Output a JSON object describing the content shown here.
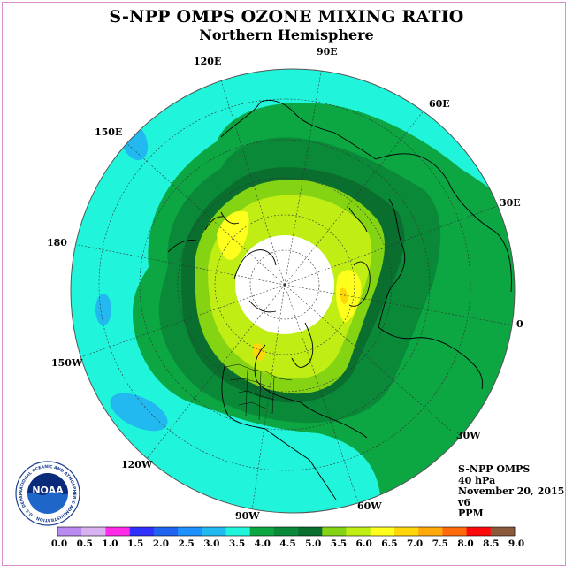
{
  "title": "S-NPP OMPS OZONE MIXING RATIO",
  "subtitle": "Northern Hemisphere",
  "longitude_labels": [
    "90E",
    "60E",
    "120E",
    "150E",
    "30E",
    "180",
    "0",
    "150W",
    "30W",
    "120W",
    "60W",
    "90W"
  ],
  "info": {
    "instrument": "S-NPP OMPS",
    "level": "40 hPa",
    "date": "November 20, 2015",
    "version": "v6",
    "units": "PPM"
  },
  "colorbar": {
    "labels": [
      "0.0",
      "0.5",
      "1.0",
      "1.5",
      "2.0",
      "2.5",
      "3.0",
      "3.5",
      "4.0",
      "4.5",
      "5.0",
      "5.5",
      "6.0",
      "6.5",
      "7.0",
      "7.5",
      "8.0",
      "8.5",
      "9.0"
    ],
    "colors": [
      "#b98af0",
      "#d9b2f2",
      "#ff2be6",
      "#3030ff",
      "#1f64f0",
      "#1e90ff",
      "#22b8f0",
      "#20f5dc",
      "#0ca643",
      "#0a8a38",
      "#0a6e2e",
      "#84d414",
      "#c0ee14",
      "#ffff1e",
      "#ffd60a",
      "#ffaa0a",
      "#ff6a0a",
      "#ff0a0a",
      "#8b5a3c"
    ]
  },
  "logo": {
    "text": "NOAA",
    "ring_text": "NATIONAL OCEANIC AND ATMOSPHERIC ADMINISTRATION · U.S. DEPARTMENT OF COMMERCE"
  }
}
